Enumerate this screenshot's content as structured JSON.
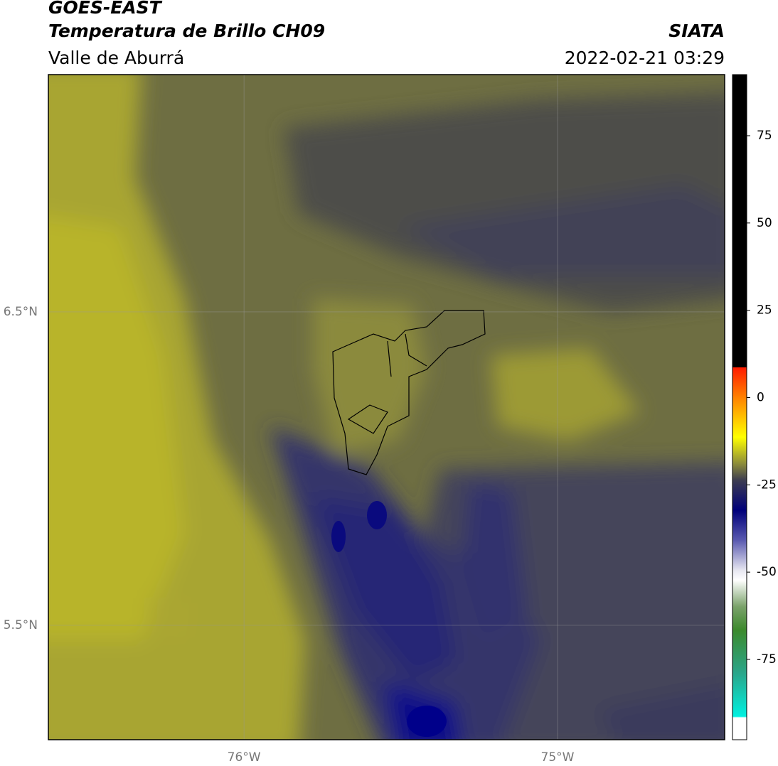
{
  "header": {
    "title": "GOES-EAST",
    "subtitle": "Temperatura de Brillo CH09",
    "region": "Valle de Aburrá",
    "source": "SIATA",
    "datetime": "2022-02-21 03:29"
  },
  "map": {
    "xlim": [
      -76.624,
      -74.467
    ],
    "ylim": [
      5.135,
      7.257
    ],
    "xticks": [
      {
        "value": -76,
        "label": "76°W"
      },
      {
        "value": -75,
        "label": "75°W"
      }
    ],
    "yticks": [
      {
        "value": 6.5,
        "label": "6.5°N"
      },
      {
        "value": 5.5,
        "label": "5.5°N"
      }
    ]
  },
  "colorbar": {
    "lim": [
      -98,
      92.5
    ],
    "ticks": [
      75,
      50,
      25,
      0,
      -25,
      -50,
      -75
    ]
  }
}
